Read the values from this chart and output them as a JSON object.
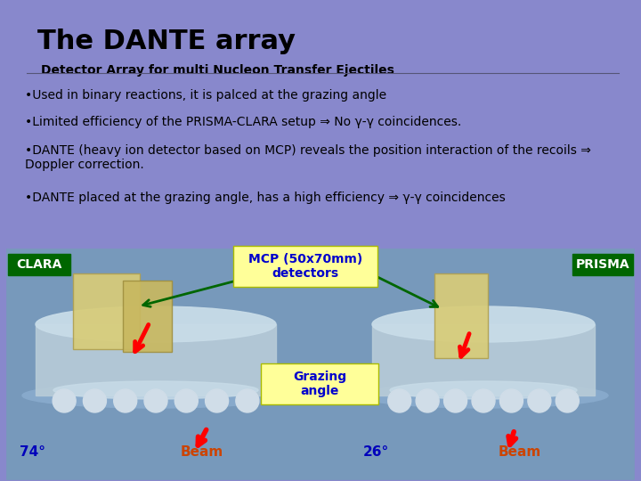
{
  "bg_color": "#8888cc",
  "title": "The DANTE array",
  "subtitle": "Detector Array for multi Nucleon Transfer Ejectiles",
  "title_color": "#000000",
  "subtitle_color": "#000000",
  "bullets": [
    "•Used in binary reactions, it is palced at the grazing angle",
    "•Limited efficiency of the PRISMA-CLARA setup ⇒ No γ-γ coincidences.",
    "•DANTE (heavy ion detector based on MCP) reveals the position interaction of the recoils ⇒ Doppler correction.",
    "•DANTE placed at the grazing angle, has a high efficiency ⇒ γ-γ coincidences"
  ],
  "mcp_label": "MCP (50x70mm)\ndetectors",
  "mcp_box_color": "#ffff99",
  "mcp_text_color": "#0000cc",
  "grazing_label": "Grazing\nangle",
  "grazing_box_color": "#ccffcc",
  "grazing_text_color": "#0000cc",
  "clara_label": "CLARA",
  "clara_box_color": "#006600",
  "clara_text_color": "#ffffff",
  "prisma_label": "PRISMA",
  "prisma_box_color": "#006600",
  "prisma_text_color": "#ffffff",
  "angle_left": "74°",
  "angle_right": "26°",
  "angle_color": "#0000bb",
  "beam_color": "#cc4400",
  "panel_bg": "#7799bb",
  "drum_body": "#b8ccd8",
  "drum_rim": "#88aacc",
  "drum_inner": "#c8dce8",
  "drum_circles": "#d8e8f0",
  "mcp_panel_light": "#d8cc80",
  "mcp_panel_dark": "#c0b060",
  "arrow_color": "#006600"
}
